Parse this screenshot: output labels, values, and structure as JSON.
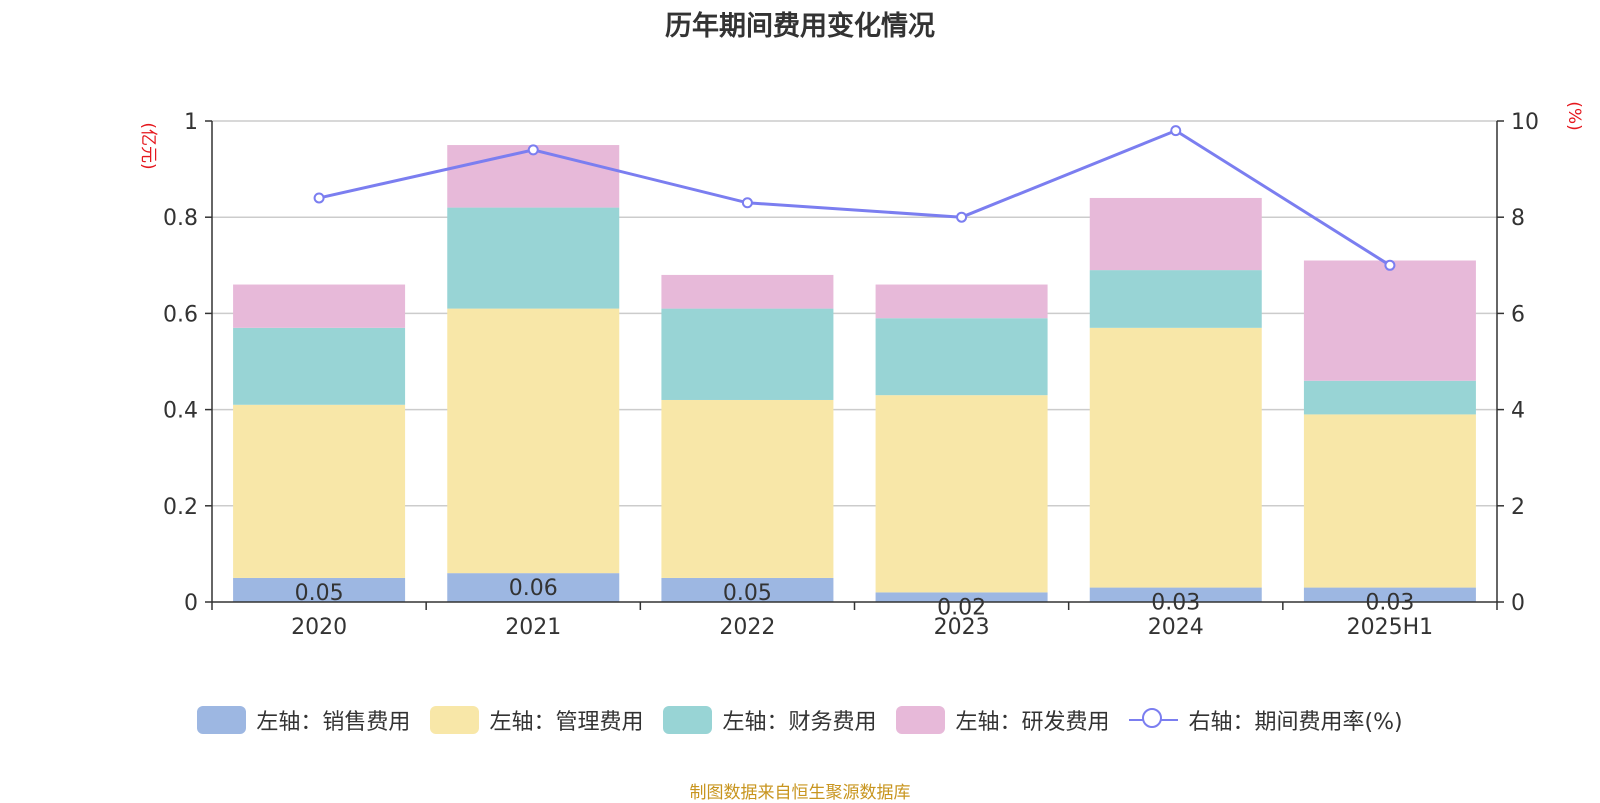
{
  "chart_data": {
    "type": "bar",
    "stacked": true,
    "title": "历年期间费用变化情况",
    "categories": [
      "2020",
      "2021",
      "2022",
      "2023",
      "2024",
      "2025H1"
    ],
    "y_left": {
      "label": "(亿元)",
      "ylim": [
        0,
        1
      ],
      "ticks": [
        "0",
        "0.2",
        "0.4",
        "0.6",
        "0.8",
        "1"
      ]
    },
    "y_right": {
      "label": "(%)",
      "ylim": [
        0,
        10
      ],
      "ticks": [
        "0",
        "2",
        "4",
        "6",
        "8",
        "10"
      ]
    },
    "grid": true,
    "legend_position": "bottom",
    "series": [
      {
        "name": "左轴：销售费用",
        "type": "bar",
        "axis": "left",
        "color": "#9db7e2",
        "values": [
          0.05,
          0.06,
          0.05,
          0.02,
          0.03,
          0.03
        ],
        "labels": [
          "0.05",
          "0.06",
          "0.05",
          "0.02",
          "0.03",
          "0.03"
        ]
      },
      {
        "name": "左轴：管理费用",
        "type": "bar",
        "axis": "left",
        "color": "#f8e7a8",
        "values": [
          0.36,
          0.55,
          0.37,
          0.41,
          0.54,
          0.36
        ]
      },
      {
        "name": "左轴：财务费用",
        "type": "bar",
        "axis": "left",
        "color": "#98d4d5",
        "values": [
          0.16,
          0.21,
          0.19,
          0.16,
          0.12,
          0.07
        ]
      },
      {
        "name": "左轴：研发费用",
        "type": "bar",
        "axis": "left",
        "color": "#e7b9d9",
        "values": [
          0.09,
          0.13,
          0.07,
          0.07,
          0.15,
          0.25
        ]
      },
      {
        "name": "右轴：期间费用率(%)",
        "type": "line",
        "axis": "right",
        "color": "#7b7ef0",
        "values": [
          8.4,
          9.4,
          8.3,
          8.0,
          9.8,
          7.0
        ]
      }
    ],
    "source_note": "制图数据来自恒生聚源数据库",
    "source_color": "#c8951f"
  }
}
